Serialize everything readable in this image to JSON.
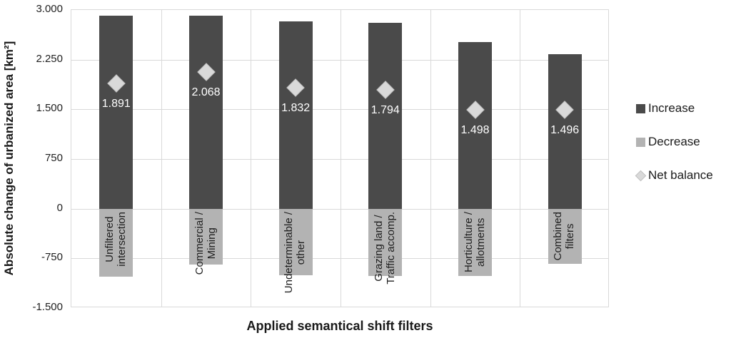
{
  "chart_data": {
    "type": "bar",
    "title": "",
    "xlabel": "Applied semantical shift filters",
    "ylabel": "Absolute change of urbanized area [km²]",
    "ylim": [
      -1500,
      3000
    ],
    "grid": true,
    "legend_position": "right",
    "yticks": [
      {
        "value": 3000,
        "label": "3.000"
      },
      {
        "value": 2250,
        "label": "2.250"
      },
      {
        "value": 1500,
        "label": "1.500"
      },
      {
        "value": 750,
        "label": "750"
      },
      {
        "value": 0,
        "label": "0"
      },
      {
        "value": -750,
        "label": "-750"
      },
      {
        "value": -1500,
        "label": "-1.500"
      }
    ],
    "categories": [
      "Unfiltered intersection",
      "Commercial / Mining",
      "Undeterminable / other",
      "Grazing land / Traffic accomp.",
      "Horticulture / allotments",
      "Combined filters"
    ],
    "category_lines": [
      [
        "Unfiltered",
        "intersection"
      ],
      [
        "Commercial /",
        "Mining"
      ],
      [
        "Undeterminable /",
        "other"
      ],
      [
        "Grazing land /",
        "Traffic accomp."
      ],
      [
        "Horticulture /",
        "allotments"
      ],
      [
        "Combined",
        "filters"
      ]
    ],
    "series": [
      {
        "name": "Increase",
        "type": "bar",
        "color": "#4a4a4a",
        "values": [
          2913,
          2915,
          2833,
          2805,
          2517,
          2328
        ]
      },
      {
        "name": "Decrease",
        "type": "bar",
        "color": "#b3b3b3",
        "values": [
          -1022,
          -847,
          -1001,
          -1011,
          -1019,
          -832
        ]
      },
      {
        "name": "Net balance",
        "type": "point",
        "marker": "diamond",
        "color": "#d9d9d9",
        "values": [
          1891,
          2068,
          1832,
          1794,
          1498,
          1496
        ],
        "labels": [
          "1.891",
          "2.068",
          "1.832",
          "1.794",
          "1.498",
          "1.496"
        ]
      }
    ]
  },
  "colors": {
    "increase": "#4a4a4a",
    "decrease": "#b3b3b3",
    "net_balance": "#d9d9d9",
    "gridline": "#d9d9d9",
    "value_label": "#ffffff",
    "text": "#1a1a1a"
  }
}
